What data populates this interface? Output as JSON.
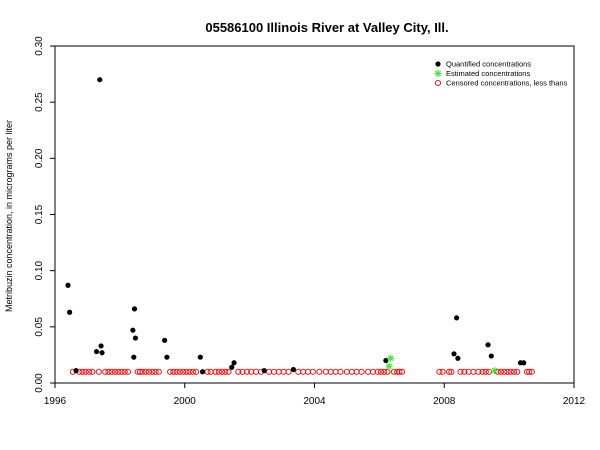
{
  "chart_data": {
    "type": "scatter",
    "title": "05586100 Illinois River at Valley City, Ill.",
    "xlabel": "",
    "ylabel": "Metribuzin concentration, in micrograms per liter",
    "xlim": [
      1996,
      2012
    ],
    "ylim": [
      0,
      0.3
    ],
    "x_ticks": [
      "1996",
      "2000",
      "2004",
      "2008",
      "2012"
    ],
    "y_ticks": [
      "0.00",
      "0.05",
      "0.10",
      "0.15",
      "0.20",
      "0.25",
      "0.30"
    ],
    "legend_position": "top-right",
    "series": [
      {
        "name": "Quantified concentrations",
        "marker": "filled-circle",
        "color": "#000000",
        "points": [
          [
            1996.4,
            0.087
          ],
          [
            1996.45,
            0.063
          ],
          [
            1996.65,
            0.011
          ],
          [
            1997.28,
            0.028
          ],
          [
            1997.38,
            0.27
          ],
          [
            1997.42,
            0.033
          ],
          [
            1997.45,
            0.027
          ],
          [
            1998.4,
            0.047
          ],
          [
            1998.45,
            0.066
          ],
          [
            1998.48,
            0.04
          ],
          [
            1998.43,
            0.023
          ],
          [
            1999.38,
            0.038
          ],
          [
            1999.45,
            0.023
          ],
          [
            2000.48,
            0.023
          ],
          [
            2000.55,
            0.01
          ],
          [
            2001.45,
            0.014
          ],
          [
            2001.52,
            0.018
          ],
          [
            2002.45,
            0.011
          ],
          [
            2003.35,
            0.012
          ],
          [
            2006.2,
            0.02
          ],
          [
            2008.3,
            0.026
          ],
          [
            2008.38,
            0.058
          ],
          [
            2008.42,
            0.022
          ],
          [
            2009.35,
            0.034
          ],
          [
            2009.45,
            0.024
          ],
          [
            2010.35,
            0.018
          ],
          [
            2010.45,
            0.018
          ]
        ]
      },
      {
        "name": "Estimated concentrations",
        "marker": "star",
        "color": "#33ee33",
        "points": [
          [
            2006.35,
            0.022
          ],
          [
            2006.3,
            0.015
          ],
          [
            2009.55,
            0.011
          ]
        ]
      },
      {
        "name": "Censored concentrations, less thans",
        "marker": "open-circle",
        "color": "#ff0000",
        "points": [
          [
            1996.55,
            0.01
          ],
          [
            1996.75,
            0.01
          ],
          [
            1996.85,
            0.01
          ],
          [
            1996.95,
            0.01
          ],
          [
            1997.05,
            0.01
          ],
          [
            1997.15,
            0.01
          ],
          [
            1997.35,
            0.01
          ],
          [
            1997.55,
            0.01
          ],
          [
            1997.65,
            0.01
          ],
          [
            1997.75,
            0.01
          ],
          [
            1997.85,
            0.01
          ],
          [
            1997.95,
            0.01
          ],
          [
            1998.05,
            0.01
          ],
          [
            1998.15,
            0.01
          ],
          [
            1998.25,
            0.01
          ],
          [
            1998.55,
            0.01
          ],
          [
            1998.62,
            0.01
          ],
          [
            1998.7,
            0.01
          ],
          [
            1998.8,
            0.01
          ],
          [
            1998.9,
            0.01
          ],
          [
            1999.0,
            0.01
          ],
          [
            1999.1,
            0.01
          ],
          [
            1999.2,
            0.01
          ],
          [
            1999.55,
            0.01
          ],
          [
            1999.65,
            0.01
          ],
          [
            1999.75,
            0.01
          ],
          [
            1999.85,
            0.01
          ],
          [
            1999.95,
            0.01
          ],
          [
            2000.05,
            0.01
          ],
          [
            2000.15,
            0.01
          ],
          [
            2000.25,
            0.01
          ],
          [
            2000.35,
            0.01
          ],
          [
            2000.7,
            0.01
          ],
          [
            2000.8,
            0.01
          ],
          [
            2000.95,
            0.01
          ],
          [
            2001.05,
            0.01
          ],
          [
            2001.15,
            0.01
          ],
          [
            2001.25,
            0.01
          ],
          [
            2001.35,
            0.01
          ],
          [
            2001.65,
            0.01
          ],
          [
            2001.78,
            0.01
          ],
          [
            2001.92,
            0.01
          ],
          [
            2002.05,
            0.01
          ],
          [
            2002.2,
            0.01
          ],
          [
            2002.35,
            0.01
          ],
          [
            2002.6,
            0.01
          ],
          [
            2002.75,
            0.01
          ],
          [
            2002.9,
            0.01
          ],
          [
            2003.05,
            0.01
          ],
          [
            2003.2,
            0.01
          ],
          [
            2003.5,
            0.01
          ],
          [
            2003.65,
            0.01
          ],
          [
            2003.8,
            0.01
          ],
          [
            2003.95,
            0.01
          ],
          [
            2004.15,
            0.01
          ],
          [
            2004.35,
            0.01
          ],
          [
            2004.5,
            0.01
          ],
          [
            2004.65,
            0.01
          ],
          [
            2004.8,
            0.01
          ],
          [
            2005.0,
            0.01
          ],
          [
            2005.15,
            0.01
          ],
          [
            2005.3,
            0.01
          ],
          [
            2005.45,
            0.01
          ],
          [
            2005.65,
            0.01
          ],
          [
            2005.8,
            0.01
          ],
          [
            2005.95,
            0.01
          ],
          [
            2006.05,
            0.01
          ],
          [
            2006.15,
            0.01
          ],
          [
            2006.25,
            0.01
          ],
          [
            2006.45,
            0.01
          ],
          [
            2006.55,
            0.01
          ],
          [
            2006.62,
            0.01
          ],
          [
            2006.7,
            0.01
          ],
          [
            2007.85,
            0.01
          ],
          [
            2007.95,
            0.01
          ],
          [
            2008.15,
            0.01
          ],
          [
            2008.22,
            0.01
          ],
          [
            2008.5,
            0.01
          ],
          [
            2008.62,
            0.01
          ],
          [
            2008.75,
            0.01
          ],
          [
            2008.9,
            0.01
          ],
          [
            2009.05,
            0.01
          ],
          [
            2009.18,
            0.01
          ],
          [
            2009.28,
            0.01
          ],
          [
            2009.38,
            0.01
          ],
          [
            2009.65,
            0.01
          ],
          [
            2009.75,
            0.01
          ],
          [
            2009.85,
            0.01
          ],
          [
            2009.95,
            0.01
          ],
          [
            2010.05,
            0.01
          ],
          [
            2010.15,
            0.01
          ],
          [
            2010.25,
            0.01
          ],
          [
            2010.55,
            0.01
          ],
          [
            2010.62,
            0.01
          ],
          [
            2010.7,
            0.01
          ]
        ]
      }
    ]
  }
}
